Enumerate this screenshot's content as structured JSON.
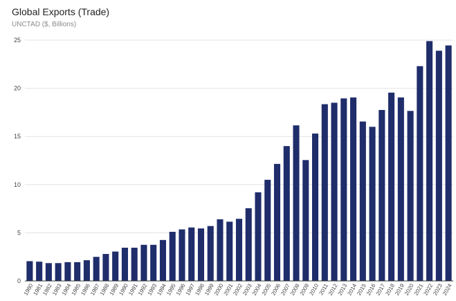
{
  "header": {
    "title": "Global Exports (Trade)",
    "subtitle": "UNCTAD ($, Billions)"
  },
  "chart_data": {
    "type": "bar",
    "title": "Global Exports (Trade)",
    "subtitle": "UNCTAD ($, Billions)",
    "xlabel": "",
    "ylabel": "",
    "ylim": [
      0,
      25
    ],
    "yticks": [
      0,
      5,
      10,
      15,
      20,
      25
    ],
    "grid": true,
    "legend": "none",
    "bar_color": "#1f2d6b",
    "categories": [
      "1980",
      "1981",
      "1982",
      "1983",
      "1984",
      "1985",
      "1986",
      "1987",
      "1988",
      "1989",
      "1990",
      "1991",
      "1992",
      "1993",
      "1994",
      "1995",
      "1996",
      "1997",
      "1998",
      "1999",
      "2000",
      "2001",
      "2002",
      "2003",
      "2004",
      "2005",
      "2006",
      "2007",
      "2008",
      "2009",
      "2010",
      "2011",
      "2012",
      "2013",
      "2014",
      "2015",
      "2016",
      "2017",
      "2018",
      "2019",
      "2020",
      "2021",
      "2022",
      "2023",
      "2024"
    ],
    "values": [
      2.05,
      2.0,
      1.85,
      1.85,
      1.95,
      1.95,
      2.15,
      2.5,
      2.8,
      3.05,
      3.45,
      3.45,
      3.75,
      3.75,
      4.25,
      5.1,
      5.35,
      5.55,
      5.45,
      5.7,
      6.4,
      6.15,
      6.45,
      7.55,
      9.2,
      10.5,
      12.15,
      14.0,
      16.15,
      12.55,
      15.3,
      18.35,
      18.5,
      18.95,
      19.05,
      16.55,
      16.0,
      17.75,
      19.55,
      19.05,
      17.65,
      22.3,
      24.9,
      23.9,
      24.45
    ]
  }
}
